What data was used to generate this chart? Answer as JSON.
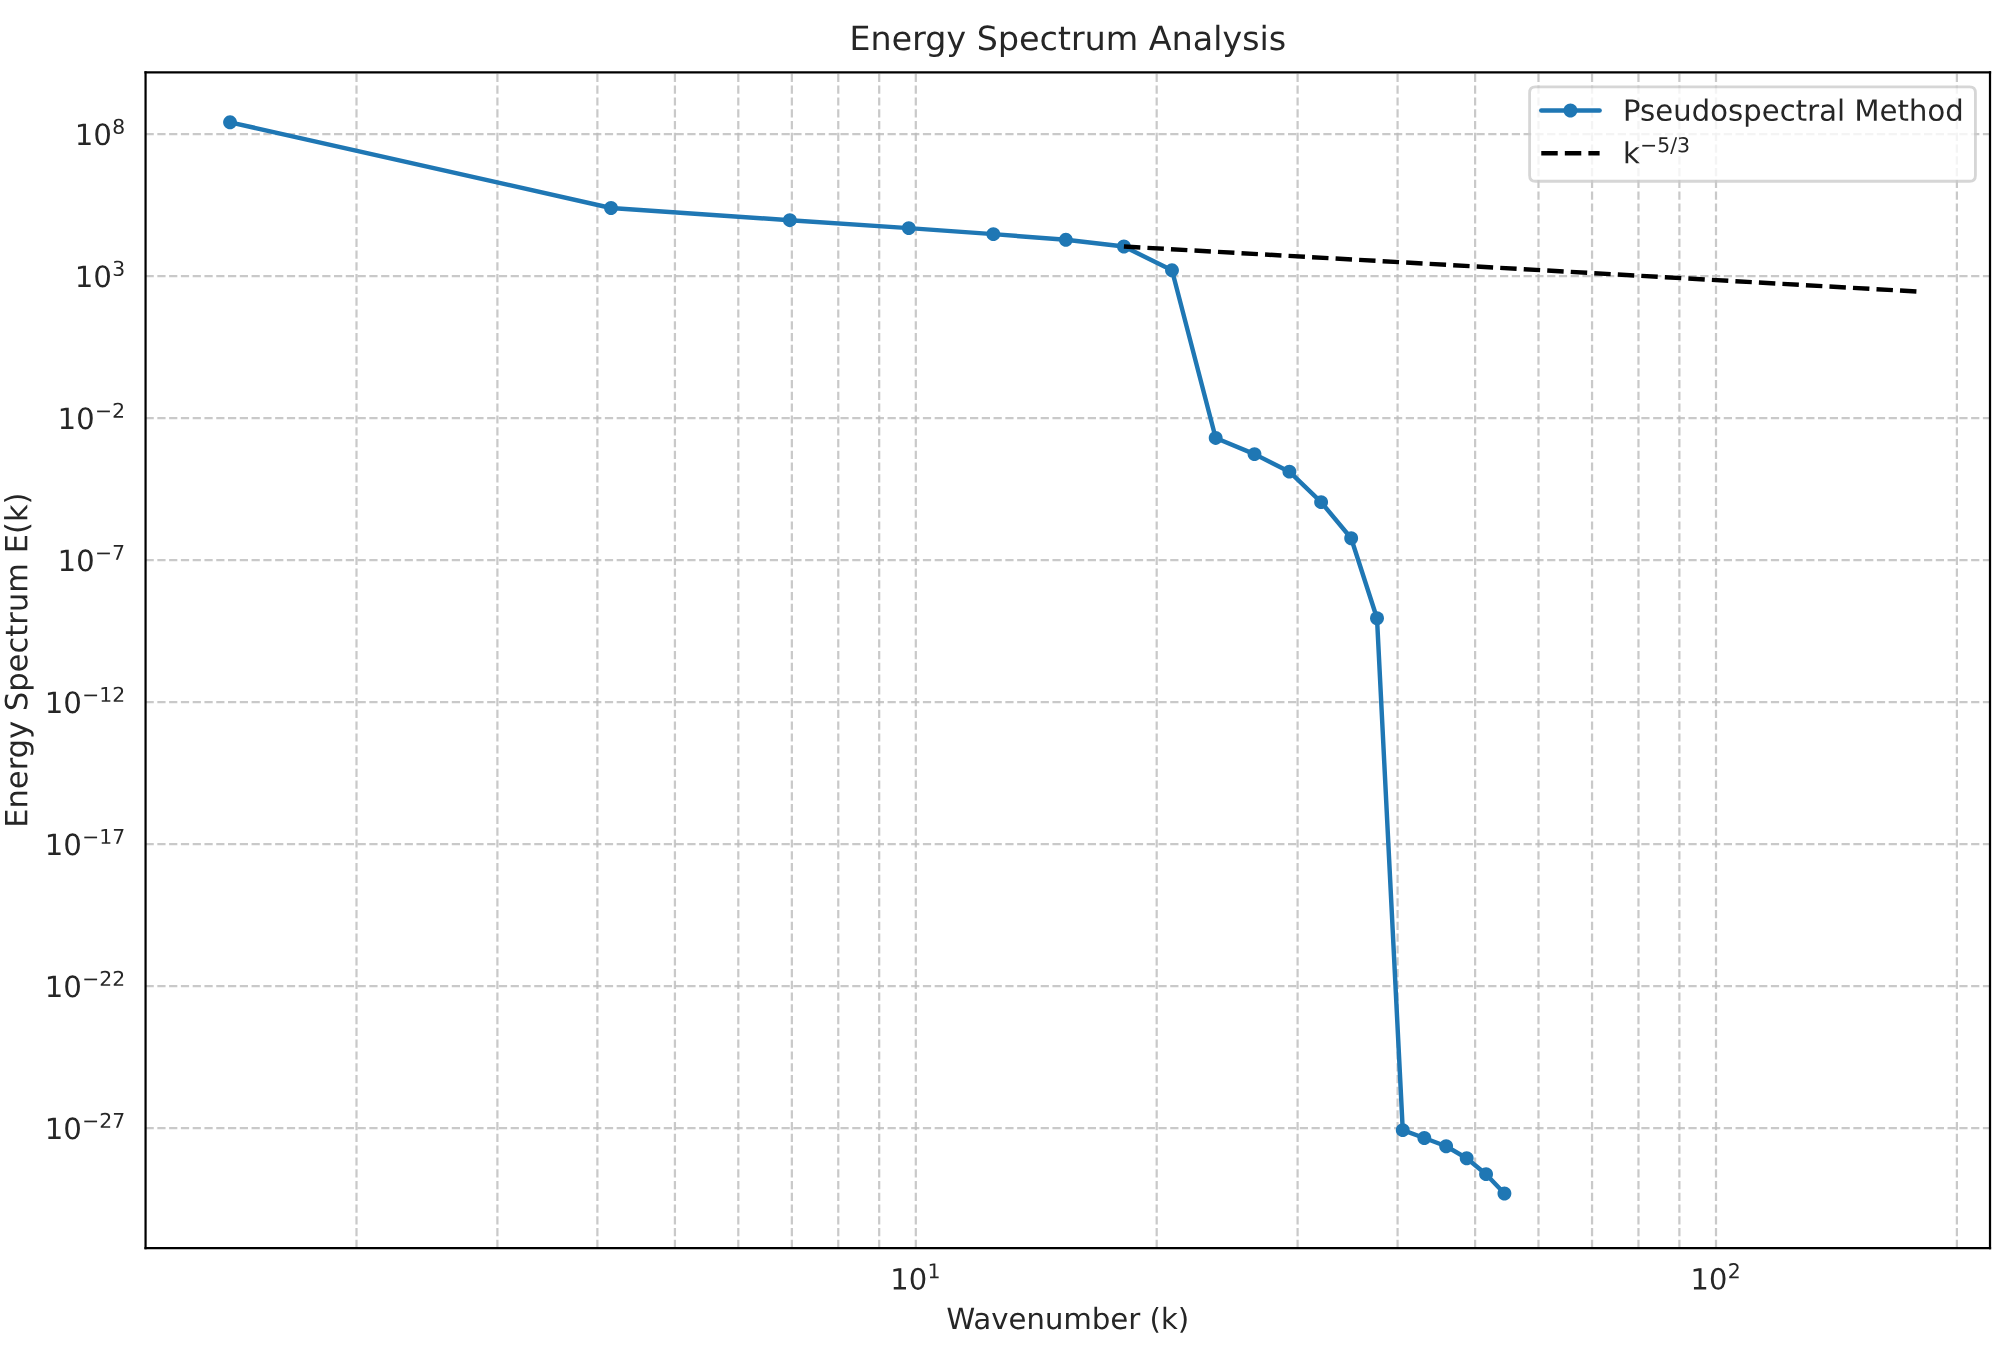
{
  "chart_data": {
    "type": "line",
    "title": "Energy Spectrum Analysis",
    "xlabel": "Wavenumber (k)",
    "ylabel": "Energy Spectrum E(k)",
    "log": "xy",
    "grid": true,
    "legend": "top right",
    "xlim": [
      1.09,
      220
    ],
    "xticks": [
      {
        "value": 10,
        "label": "10$^{1}$"
      },
      {
        "value": 100,
        "label": "10$^{2}$"
      }
    ],
    "ylim": [
      6e-32,
      15000000000.0
    ],
    "yticks": [
      {
        "value": 100000000.0,
        "label": "10$^{8}$"
      },
      {
        "value": 1000.0,
        "label": "10$^{3}$"
      },
      {
        "value": 0.01,
        "label": "10$^{−2}$"
      },
      {
        "value": 1e-07,
        "label": "10$^{−7}$"
      },
      {
        "value": 1e-12,
        "label": "10$^{−12}$"
      },
      {
        "value": 1e-17,
        "label": "10$^{−17}$"
      },
      {
        "value": 1e-22,
        "label": "10$^{−22}$"
      },
      {
        "value": 1e-27,
        "label": "10$^{−27}$"
      }
    ],
    "series": [
      {
        "name": "Pseudospectral Method",
        "color": "#1f77b4",
        "marker": "circle",
        "line_style": "solid",
        "x": [
          1.39,
          4.16,
          6.96,
          9.8,
          12.5,
          15.4,
          18.2,
          20.9,
          23.7,
          26.5,
          29.3,
          32.1,
          35,
          37.7,
          40.6,
          43.2,
          46,
          48.8,
          51.6,
          54.4
        ],
        "values": [
          260000000.0,
          250000.0,
          93000.0,
          49000.0,
          30000.0,
          19000.0,
          11000.0,
          1600.0,
          0.002,
          0.00054,
          0.00013,
          1.1e-05,
          5.9e-07,
          9e-10,
          8.5e-28,
          4.5e-28,
          2.3e-28,
          8.7e-29,
          2.4e-29,
          5e-30
        ]
      },
      {
        "name": "k$^{−5/3}$",
        "color": "#000000",
        "marker": "none",
        "line_style": "dashed",
        "x": [
          18.2,
          181
        ],
        "values": [
          11000.0,
          280.0
        ]
      }
    ]
  }
}
